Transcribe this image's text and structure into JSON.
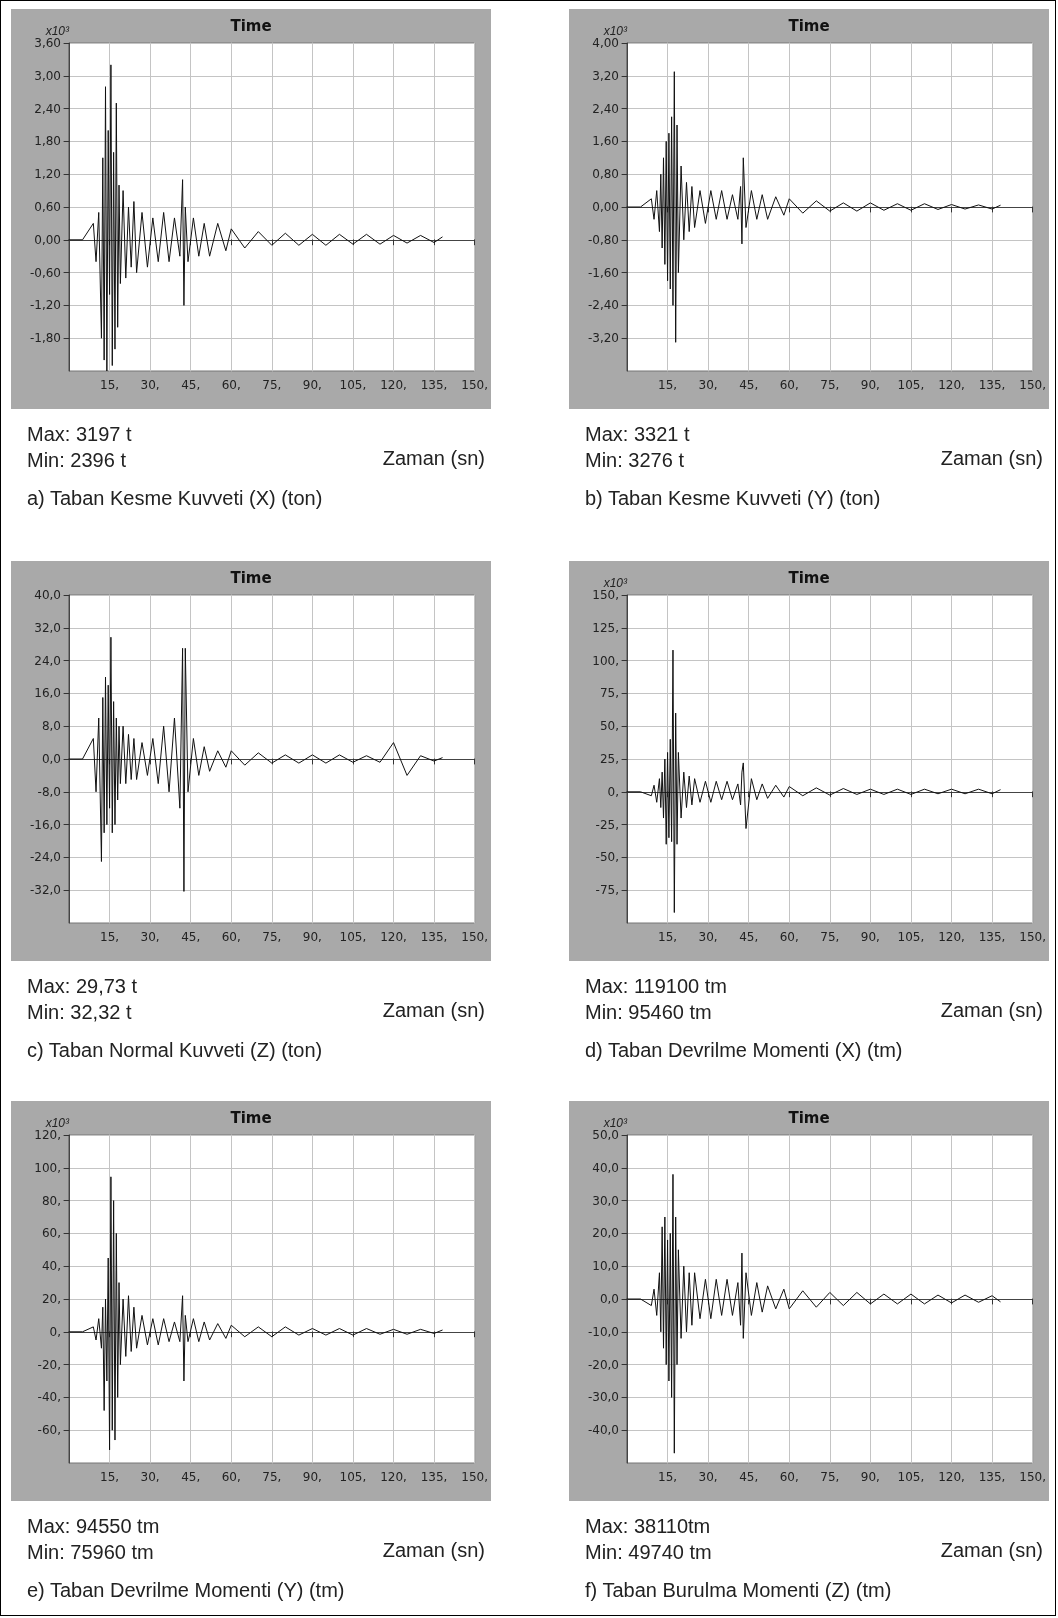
{
  "chart_data": [
    {
      "type": "line",
      "title": "Time",
      "ylabel": "x10³",
      "xlabel": "Zaman (sn)",
      "annotations": [
        "Max: 3197 t",
        "Min: 2396 t",
        "a) Taban Kesme Kuvveti (X) (ton)"
      ],
      "color": "#111111",
      "grid": true,
      "xlim": [
        0,
        150
      ],
      "xticks": [
        {
          "value": 15,
          "label": "15,"
        },
        {
          "value": 30,
          "label": "30,"
        },
        {
          "value": 45,
          "label": "45,"
        },
        {
          "value": 60,
          "label": "60,"
        },
        {
          "value": 75,
          "label": "75,"
        },
        {
          "value": 90,
          "label": "90,"
        },
        {
          "value": 105,
          "label": "105,"
        },
        {
          "value": 120,
          "label": "120,"
        },
        {
          "value": 135,
          "label": "135,"
        },
        {
          "value": 150,
          "label": "150,"
        }
      ],
      "ylim": [
        -2.4,
        3.6
      ],
      "yticks": [
        {
          "value": -1.8,
          "label": "-1,80"
        },
        {
          "value": -1.2,
          "label": "-1,20"
        },
        {
          "value": -0.6,
          "label": "-0,60"
        },
        {
          "value": 0,
          "label": "0,00"
        },
        {
          "value": 0.6,
          "label": "0,60"
        },
        {
          "value": 1.2,
          "label": "1,20"
        },
        {
          "value": 1.8,
          "label": "1,80"
        },
        {
          "value": 2.4,
          "label": "2,40"
        },
        {
          "value": 3.0,
          "label": "3,00"
        },
        {
          "value": 3.6,
          "label": "3,60"
        }
      ],
      "x": [
        0,
        5,
        9,
        10,
        11,
        12,
        12.5,
        13,
        13.5,
        14,
        14.5,
        15,
        15.5,
        16,
        16.5,
        17,
        17.5,
        18,
        18.5,
        19,
        20,
        21,
        22,
        23,
        24,
        25,
        27,
        29,
        31,
        33,
        35,
        37,
        39,
        41,
        42,
        42.5,
        43,
        44,
        46,
        48,
        50,
        52,
        55,
        58,
        60,
        65,
        70,
        75,
        80,
        85,
        90,
        95,
        100,
        105,
        110,
        115,
        120,
        125,
        130,
        135,
        138
      ],
      "values": [
        0,
        0,
        0.3,
        -0.4,
        0.5,
        -1.8,
        1.5,
        -2.2,
        2.8,
        -2.4,
        2.0,
        -1.0,
        3.2,
        -2.3,
        1.6,
        -2.0,
        2.5,
        -1.6,
        1.0,
        -0.8,
        0.9,
        -0.7,
        0.6,
        -0.5,
        0.7,
        -0.6,
        0.5,
        -0.5,
        0.4,
        -0.4,
        0.5,
        -0.4,
        0.4,
        -0.3,
        1.1,
        -1.2,
        0.6,
        -0.4,
        0.4,
        -0.3,
        0.3,
        -0.3,
        0.3,
        -0.2,
        0.2,
        -0.15,
        0.15,
        -0.1,
        0.12,
        -0.1,
        0.1,
        -0.1,
        0.1,
        -0.08,
        0.1,
        -0.08,
        0.08,
        -0.06,
        0.08,
        -0.05,
        0.05
      ]
    },
    {
      "type": "line",
      "title": "Time",
      "ylabel": "x10³",
      "xlabel": "Zaman (sn)",
      "annotations": [
        "Max: 3321 t",
        "Min: 3276 t",
        "b) Taban Kesme Kuvveti (Y) (ton)"
      ],
      "color": "#111111",
      "grid": true,
      "xlim": [
        0,
        150
      ],
      "xticks": [
        {
          "value": 15,
          "label": "15,"
        },
        {
          "value": 30,
          "label": "30,"
        },
        {
          "value": 45,
          "label": "45,"
        },
        {
          "value": 60,
          "label": "60,"
        },
        {
          "value": 75,
          "label": "75,"
        },
        {
          "value": 90,
          "label": "90,"
        },
        {
          "value": 105,
          "label": "105,"
        },
        {
          "value": 120,
          "label": "120,"
        },
        {
          "value": 135,
          "label": "135,"
        },
        {
          "value": 150,
          "label": "150,"
        }
      ],
      "ylim": [
        -4,
        4
      ],
      "yticks": [
        {
          "value": -3.2,
          "label": "-3,20"
        },
        {
          "value": -2.4,
          "label": "-2,40"
        },
        {
          "value": -1.6,
          "label": "-1,60"
        },
        {
          "value": -0.8,
          "label": "-0,80"
        },
        {
          "value": 0,
          "label": "0,00"
        },
        {
          "value": 0.8,
          "label": "0,80"
        },
        {
          "value": 1.6,
          "label": "1,60"
        },
        {
          "value": 2.4,
          "label": "2,40"
        },
        {
          "value": 3.2,
          "label": "3,20"
        },
        {
          "value": 4,
          "label": "4,00"
        }
      ],
      "x": [
        0,
        5,
        9,
        10,
        11,
        12,
        12.5,
        13,
        13.5,
        14,
        14.5,
        15,
        15.5,
        16,
        16.5,
        17,
        17.5,
        18,
        18.5,
        19,
        20,
        21,
        22,
        23,
        24,
        25,
        27,
        29,
        31,
        33,
        35,
        37,
        39,
        41,
        42,
        42.5,
        43,
        44,
        46,
        48,
        50,
        52,
        55,
        58,
        60,
        65,
        70,
        75,
        80,
        85,
        90,
        95,
        100,
        105,
        110,
        115,
        120,
        125,
        130,
        135,
        138
      ],
      "values": [
        0,
        0,
        0.2,
        -0.3,
        0.4,
        -0.6,
        0.8,
        -1.0,
        1.2,
        -1.4,
        1.6,
        -1.8,
        1.8,
        -2.0,
        2.2,
        -2.4,
        3.3,
        -3.3,
        2.0,
        -1.6,
        1.0,
        -0.8,
        0.6,
        -0.6,
        0.5,
        -0.5,
        0.4,
        -0.4,
        0.4,
        -0.3,
        0.4,
        -0.3,
        0.3,
        -0.3,
        0.5,
        -0.9,
        1.2,
        -0.5,
        0.4,
        -0.3,
        0.3,
        -0.3,
        0.25,
        -0.2,
        0.2,
        -0.15,
        0.15,
        -0.1,
        0.1,
        -0.1,
        0.1,
        -0.08,
        0.08,
        -0.08,
        0.08,
        -0.06,
        0.06,
        -0.05,
        0.05,
        -0.05,
        0.04
      ]
    },
    {
      "type": "line",
      "title": "Time",
      "xlabel": "Zaman (sn)",
      "annotations": [
        "Max: 29,73 t",
        "Min: 32,32 t",
        "c) Taban Normal Kuvveti (Z) (ton)"
      ],
      "color": "#111111",
      "grid": true,
      "xlim": [
        0,
        150
      ],
      "xticks": [
        {
          "value": 15,
          "label": "15,"
        },
        {
          "value": 30,
          "label": "30,"
        },
        {
          "value": 45,
          "label": "45,"
        },
        {
          "value": 60,
          "label": "60,"
        },
        {
          "value": 75,
          "label": "75,"
        },
        {
          "value": 90,
          "label": "90,"
        },
        {
          "value": 105,
          "label": "105,"
        },
        {
          "value": 120,
          "label": "120,"
        },
        {
          "value": 135,
          "label": "135,"
        },
        {
          "value": 150,
          "label": "150,"
        }
      ],
      "ylim": [
        -40,
        40
      ],
      "yticks": [
        {
          "value": -32,
          "label": "-32,0"
        },
        {
          "value": -24,
          "label": "-24,0"
        },
        {
          "value": -16,
          "label": "-16,0"
        },
        {
          "value": -8,
          "label": "-8,0"
        },
        {
          "value": 0,
          "label": "0,0"
        },
        {
          "value": 8,
          "label": "8,0"
        },
        {
          "value": 16,
          "label": "16,0"
        },
        {
          "value": 24,
          "label": "24,0"
        },
        {
          "value": 32,
          "label": "32,0"
        },
        {
          "value": 40,
          "label": "40,0"
        }
      ],
      "x": [
        0,
        5,
        9,
        10,
        11,
        12,
        12.5,
        13,
        13.5,
        14,
        14.5,
        15,
        15.5,
        16,
        16.5,
        17,
        17.5,
        18,
        18.5,
        19,
        20,
        21,
        22,
        23,
        24,
        25,
        27,
        29,
        31,
        33,
        35,
        37,
        39,
        41,
        42,
        42.5,
        43,
        44,
        46,
        48,
        50,
        52,
        55,
        58,
        60,
        65,
        70,
        75,
        80,
        85,
        90,
        95,
        100,
        105,
        110,
        115,
        120,
        125,
        130,
        135,
        138
      ],
      "values": [
        0,
        0,
        5,
        -8,
        10,
        -25,
        15,
        -18,
        20,
        -16,
        18,
        -12,
        29.7,
        -18,
        14,
        -16,
        10,
        -10,
        8,
        -6,
        8,
        -6,
        6,
        -5,
        5,
        -5,
        4,
        -4,
        5,
        -6,
        8,
        -8,
        10,
        -12,
        27,
        -32.3,
        27,
        -8,
        5,
        -4,
        3,
        -3,
        2,
        -2,
        2,
        -1.5,
        1.5,
        -1,
        1,
        -1,
        1,
        -1,
        1,
        -0.8,
        0.8,
        -0.8,
        4,
        -4,
        0.8,
        -0.5,
        0.3
      ]
    },
    {
      "type": "line",
      "title": "Time",
      "ylabel": "x10³",
      "xlabel": "Zaman (sn)",
      "annotations": [
        "Max: 119100 tm",
        "Min: 95460 tm",
        "d) Taban Devrilme Momenti (X) (tm)"
      ],
      "color": "#111111",
      "grid": true,
      "xlim": [
        0,
        150
      ],
      "xticks": [
        {
          "value": 15,
          "label": "15,"
        },
        {
          "value": 30,
          "label": "30,"
        },
        {
          "value": 45,
          "label": "45,"
        },
        {
          "value": 60,
          "label": "60,"
        },
        {
          "value": 75,
          "label": "75,"
        },
        {
          "value": 90,
          "label": "90,"
        },
        {
          "value": 105,
          "label": "105,"
        },
        {
          "value": 120,
          "label": "120,"
        },
        {
          "value": 135,
          "label": "135,"
        },
        {
          "value": 150,
          "label": "150,"
        }
      ],
      "ylim": [
        -100,
        150
      ],
      "yticks": [
        {
          "value": -75,
          "label": "-75,"
        },
        {
          "value": -50,
          "label": "-50,"
        },
        {
          "value": -25,
          "label": "-25,"
        },
        {
          "value": 0,
          "label": "0,"
        },
        {
          "value": 25,
          "label": "25,"
        },
        {
          "value": 50,
          "label": "50,"
        },
        {
          "value": 75,
          "label": "75,"
        },
        {
          "value": 100,
          "label": "100,"
        },
        {
          "value": 125,
          "label": "125,"
        },
        {
          "value": 150,
          "label": "150,"
        }
      ],
      "x": [
        0,
        5,
        9,
        10,
        11,
        12,
        12.5,
        13,
        13.5,
        14,
        14.5,
        15,
        15.5,
        16,
        16.5,
        17,
        17.5,
        18,
        18.5,
        19,
        20,
        21,
        22,
        23,
        24,
        25,
        27,
        29,
        31,
        33,
        35,
        37,
        39,
        41,
        42,
        42.5,
        43,
        44,
        46,
        48,
        50,
        52,
        55,
        58,
        60,
        65,
        70,
        75,
        80,
        85,
        90,
        95,
        100,
        105,
        110,
        115,
        120,
        125,
        130,
        135,
        138
      ],
      "values": [
        0,
        0,
        -3,
        5,
        -8,
        10,
        -12,
        15,
        -20,
        25,
        -40,
        30,
        -35,
        40,
        -38,
        108,
        -92,
        60,
        -40,
        30,
        -20,
        15,
        -12,
        12,
        -10,
        10,
        -8,
        8,
        -8,
        8,
        -6,
        8,
        -6,
        6,
        -10,
        15,
        22,
        -28,
        10,
        -6,
        6,
        -5,
        5,
        -4,
        4,
        -3,
        3,
        -2.5,
        2.5,
        -2,
        2,
        -2,
        2,
        -2,
        2,
        -1.5,
        2,
        -1.5,
        2,
        -1.5,
        1.5
      ]
    },
    {
      "type": "line",
      "title": "Time",
      "ylabel": "x10³",
      "xlabel": "Zaman (sn)",
      "annotations": [
        "Max: 94550 tm",
        "Min: 75960 tm",
        "e) Taban Devrilme Momenti (Y) (tm)"
      ],
      "color": "#111111",
      "grid": true,
      "xlim": [
        0,
        150
      ],
      "xticks": [
        {
          "value": 15,
          "label": "15,"
        },
        {
          "value": 30,
          "label": "30,"
        },
        {
          "value": 45,
          "label": "45,"
        },
        {
          "value": 60,
          "label": "60,"
        },
        {
          "value": 75,
          "label": "75,"
        },
        {
          "value": 90,
          "label": "90,"
        },
        {
          "value": 105,
          "label": "105,"
        },
        {
          "value": 120,
          "label": "120,"
        },
        {
          "value": 135,
          "label": "135,"
        },
        {
          "value": 150,
          "label": "150,"
        }
      ],
      "ylim": [
        -80,
        120
      ],
      "yticks": [
        {
          "value": -60,
          "label": "-60,"
        },
        {
          "value": -40,
          "label": "-40,"
        },
        {
          "value": -20,
          "label": "-20,"
        },
        {
          "value": 0,
          "label": "0,"
        },
        {
          "value": 20,
          "label": "20,"
        },
        {
          "value": 40,
          "label": "40,"
        },
        {
          "value": 60,
          "label": "60,"
        },
        {
          "value": 80,
          "label": "80,"
        },
        {
          "value": 100,
          "label": "100,"
        },
        {
          "value": 120,
          "label": "120,"
        }
      ],
      "x": [
        0,
        5,
        9,
        10,
        11,
        12,
        12.5,
        13,
        13.5,
        14,
        14.5,
        15,
        15.5,
        16,
        16.5,
        17,
        17.5,
        18,
        18.5,
        19,
        20,
        21,
        22,
        23,
        24,
        25,
        27,
        29,
        31,
        33,
        35,
        37,
        39,
        41,
        42,
        42.5,
        43,
        44,
        46,
        48,
        50,
        52,
        55,
        58,
        60,
        65,
        70,
        75,
        80,
        85,
        90,
        95,
        100,
        105,
        110,
        115,
        120,
        125,
        130,
        135,
        138
      ],
      "values": [
        0,
        0,
        3,
        -5,
        8,
        -10,
        15,
        -48,
        20,
        -30,
        45,
        -72,
        94.5,
        -60,
        80,
        -66,
        60,
        -40,
        30,
        -20,
        20,
        -15,
        22,
        -12,
        15,
        -10,
        10,
        -8,
        8,
        -8,
        8,
        -6,
        6,
        -6,
        22,
        -30,
        10,
        -6,
        8,
        -6,
        6,
        -5,
        5,
        -4,
        4,
        -3,
        3,
        -3,
        3,
        -2,
        2,
        -2,
        2,
        -2,
        2,
        -1.5,
        1.5,
        -1.5,
        1.5,
        -1,
        1
      ]
    },
    {
      "type": "line",
      "title": "Time",
      "ylabel": "x10³",
      "xlabel": "Zaman (sn)",
      "annotations": [
        "Max: 38110tm",
        "Min: 49740 tm",
        "f) Taban Burulma Momenti (Z) (tm)"
      ],
      "color": "#111111",
      "grid": true,
      "xlim": [
        0,
        150
      ],
      "xticks": [
        {
          "value": 15,
          "label": "15,"
        },
        {
          "value": 30,
          "label": "30,"
        },
        {
          "value": 45,
          "label": "45,"
        },
        {
          "value": 60,
          "label": "60,"
        },
        {
          "value": 75,
          "label": "75,"
        },
        {
          "value": 90,
          "label": "90,"
        },
        {
          "value": 105,
          "label": "105,"
        },
        {
          "value": 120,
          "label": "120,"
        },
        {
          "value": 135,
          "label": "135,"
        },
        {
          "value": 150,
          "label": "150,"
        }
      ],
      "ylim": [
        -50,
        50
      ],
      "yticks": [
        {
          "value": -40,
          "label": "-40,0"
        },
        {
          "value": -30,
          "label": "-30,0"
        },
        {
          "value": -20,
          "label": "-20,0"
        },
        {
          "value": -10,
          "label": "-10,0"
        },
        {
          "value": 0,
          "label": "0,0"
        },
        {
          "value": 10,
          "label": "10,0"
        },
        {
          "value": 20,
          "label": "20,0"
        },
        {
          "value": 30,
          "label": "30,0"
        },
        {
          "value": 40,
          "label": "40,0"
        },
        {
          "value": 50,
          "label": "50,0"
        }
      ],
      "x": [
        0,
        5,
        9,
        10,
        11,
        12,
        12.5,
        13,
        13.5,
        14,
        14.5,
        15,
        15.5,
        16,
        16.5,
        17,
        17.5,
        18,
        18.5,
        19,
        20,
        21,
        22,
        23,
        24,
        25,
        27,
        29,
        31,
        33,
        35,
        37,
        39,
        41,
        42,
        42.5,
        43,
        44,
        46,
        48,
        50,
        52,
        55,
        58,
        60,
        65,
        70,
        75,
        80,
        85,
        90,
        95,
        100,
        105,
        110,
        115,
        120,
        125,
        130,
        135,
        138
      ],
      "values": [
        0,
        0,
        -2,
        3,
        -5,
        8,
        -10,
        22,
        -15,
        25,
        -20,
        18,
        -25,
        20,
        -30,
        38,
        -47,
        25,
        -20,
        15,
        -12,
        10,
        -10,
        8,
        -8,
        8,
        -6,
        6,
        -6,
        6,
        -5,
        6,
        -5,
        5,
        -8,
        14,
        -12,
        8,
        -5,
        5,
        -4,
        4,
        -3,
        3,
        -3,
        2.5,
        -2.5,
        2,
        -2,
        2,
        -1.5,
        1.5,
        -1.5,
        1.5,
        -1.5,
        1.2,
        -1.2,
        1.2,
        -1,
        1,
        -0.8
      ]
    }
  ]
}
